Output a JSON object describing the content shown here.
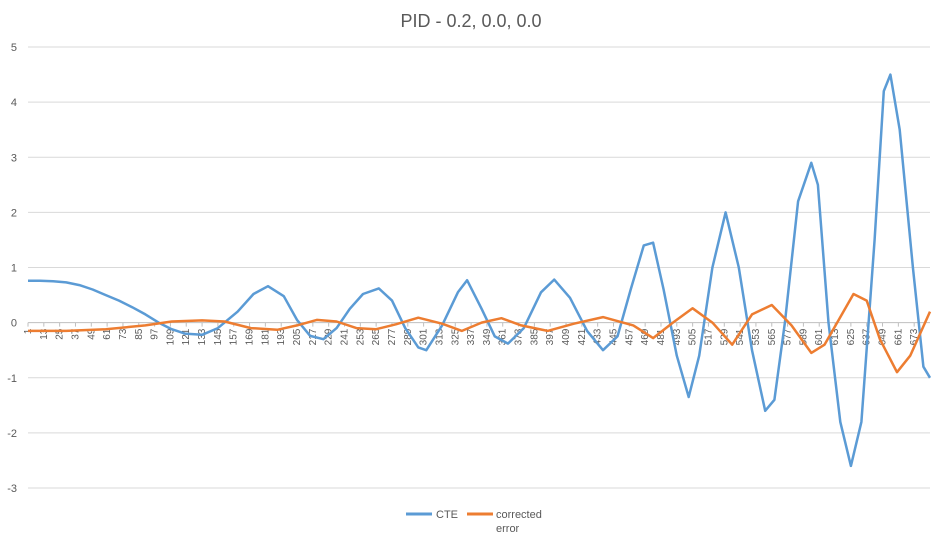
{
  "chart_data": {
    "type": "line",
    "title": "PID -  0.2, 0.0, 0.0",
    "xlabel": "",
    "ylabel": "",
    "ylim": [
      -3,
      5
    ],
    "xlim": [
      1,
      685
    ],
    "y_ticks": [
      5,
      4,
      3,
      2,
      1,
      0,
      -1,
      -2,
      -3
    ],
    "x_tick_labels": [
      1,
      13,
      25,
      37,
      49,
      61,
      73,
      85,
      97,
      109,
      121,
      133,
      145,
      157,
      169,
      181,
      193,
      205,
      217,
      229,
      241,
      253,
      265,
      277,
      289,
      301,
      313,
      325,
      337,
      349,
      361,
      373,
      385,
      397,
      409,
      421,
      433,
      445,
      457,
      469,
      481,
      493,
      505,
      517,
      529,
      541,
      553,
      565,
      577,
      589,
      601,
      613,
      625,
      637,
      649,
      661,
      673
    ],
    "grid": true,
    "legend_position": "bottom",
    "colors": {
      "cte": "#5B9BD5",
      "corrected_error": "#ED7D31"
    },
    "series": [
      {
        "name": "CTE",
        "color": "#5B9BD5",
        "points": [
          [
            1,
            0.76
          ],
          [
            10,
            0.76
          ],
          [
            20,
            0.75
          ],
          [
            30,
            0.73
          ],
          [
            40,
            0.68
          ],
          [
            50,
            0.6
          ],
          [
            60,
            0.5
          ],
          [
            70,
            0.4
          ],
          [
            80,
            0.28
          ],
          [
            90,
            0.15
          ],
          [
            100,
            0.0
          ],
          [
            110,
            -0.12
          ],
          [
            120,
            -0.2
          ],
          [
            133,
            -0.22
          ],
          [
            145,
            -0.1
          ],
          [
            160,
            0.2
          ],
          [
            172,
            0.52
          ],
          [
            183,
            0.66
          ],
          [
            195,
            0.48
          ],
          [
            205,
            0.05
          ],
          [
            215,
            -0.24
          ],
          [
            225,
            -0.3
          ],
          [
            235,
            -0.1
          ],
          [
            245,
            0.25
          ],
          [
            255,
            0.52
          ],
          [
            267,
            0.62
          ],
          [
            277,
            0.4
          ],
          [
            287,
            -0.1
          ],
          [
            297,
            -0.45
          ],
          [
            303,
            -0.5
          ],
          [
            315,
            -0.05
          ],
          [
            327,
            0.55
          ],
          [
            334,
            0.77
          ],
          [
            345,
            0.25
          ],
          [
            355,
            -0.25
          ],
          [
            365,
            -0.38
          ],
          [
            377,
            -0.1
          ],
          [
            390,
            0.55
          ],
          [
            400,
            0.78
          ],
          [
            412,
            0.45
          ],
          [
            425,
            -0.15
          ],
          [
            437,
            -0.5
          ],
          [
            448,
            -0.25
          ],
          [
            458,
            0.6
          ],
          [
            468,
            1.4
          ],
          [
            475,
            1.45
          ],
          [
            483,
            0.6
          ],
          [
            493,
            -0.6
          ],
          [
            502,
            -1.35
          ],
          [
            510,
            -0.6
          ],
          [
            520,
            1.0
          ],
          [
            530,
            2.0
          ],
          [
            540,
            1.0
          ],
          [
            550,
            -0.5
          ],
          [
            560,
            -1.6
          ],
          [
            567,
            -1.4
          ],
          [
            575,
            0.0
          ],
          [
            585,
            2.2
          ],
          [
            595,
            2.9
          ],
          [
            600,
            2.5
          ],
          [
            608,
            0.0
          ],
          [
            617,
            -1.8
          ],
          [
            625,
            -2.6
          ],
          [
            633,
            -1.8
          ],
          [
            643,
            1.5
          ],
          [
            650,
            4.2
          ],
          [
            655,
            4.5
          ],
          [
            662,
            3.5
          ],
          [
            672,
            1.0
          ],
          [
            680,
            -0.8
          ],
          [
            685,
            -1.0
          ]
        ]
      },
      {
        "name": "corrected error",
        "color": "#ED7D31",
        "points": [
          [
            1,
            -0.15
          ],
          [
            30,
            -0.15
          ],
          [
            60,
            -0.12
          ],
          [
            90,
            -0.05
          ],
          [
            110,
            0.02
          ],
          [
            133,
            0.04
          ],
          [
            150,
            0.02
          ],
          [
            170,
            -0.1
          ],
          [
            190,
            -0.13
          ],
          [
            205,
            -0.05
          ],
          [
            220,
            0.05
          ],
          [
            235,
            0.02
          ],
          [
            250,
            -0.1
          ],
          [
            265,
            -0.12
          ],
          [
            280,
            -0.03
          ],
          [
            297,
            0.09
          ],
          [
            315,
            -0.02
          ],
          [
            330,
            -0.15
          ],
          [
            345,
            0.0
          ],
          [
            360,
            0.08
          ],
          [
            375,
            -0.05
          ],
          [
            395,
            -0.15
          ],
          [
            415,
            -0.02
          ],
          [
            437,
            0.1
          ],
          [
            460,
            -0.05
          ],
          [
            475,
            -0.28
          ],
          [
            490,
            0.0
          ],
          [
            505,
            0.26
          ],
          [
            520,
            0.0
          ],
          [
            535,
            -0.4
          ],
          [
            550,
            0.15
          ],
          [
            565,
            0.32
          ],
          [
            580,
            -0.05
          ],
          [
            595,
            -0.55
          ],
          [
            605,
            -0.4
          ],
          [
            617,
            0.1
          ],
          [
            627,
            0.52
          ],
          [
            637,
            0.4
          ],
          [
            647,
            -0.3
          ],
          [
            660,
            -0.9
          ],
          [
            670,
            -0.6
          ],
          [
            685,
            0.2
          ]
        ]
      }
    ]
  }
}
